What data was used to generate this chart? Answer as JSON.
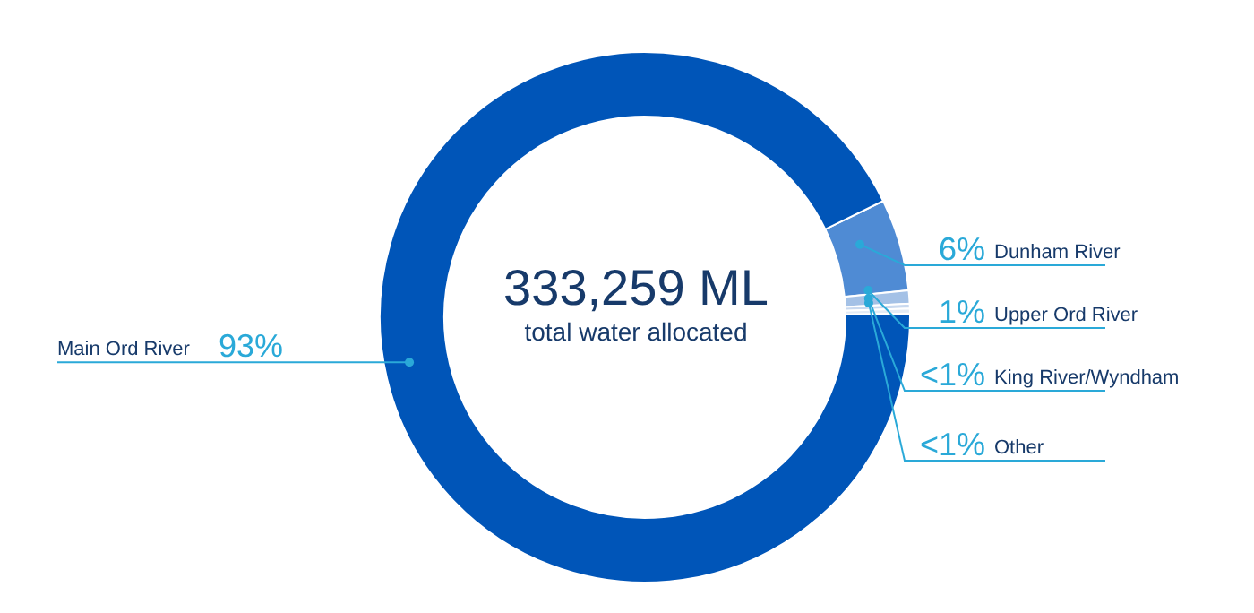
{
  "chart_data": {
    "type": "donut",
    "categories": [
      "Dunham River",
      "Upper Ord River",
      "King River/Wyndham",
      "Other",
      "Main Ord River"
    ],
    "values": [
      5.6,
      0.8,
      0.3,
      0.3,
      93
    ],
    "value_labels": [
      "6%",
      "1%",
      "<1%",
      "<1%",
      "93%"
    ],
    "colors": [
      "#4f8bd4",
      "#a4c1e6",
      "#c9d9ef",
      "#e3ebf5",
      "#0055b8"
    ],
    "annotations": [
      "333,259 ML",
      "total water allocated"
    ]
  }
}
